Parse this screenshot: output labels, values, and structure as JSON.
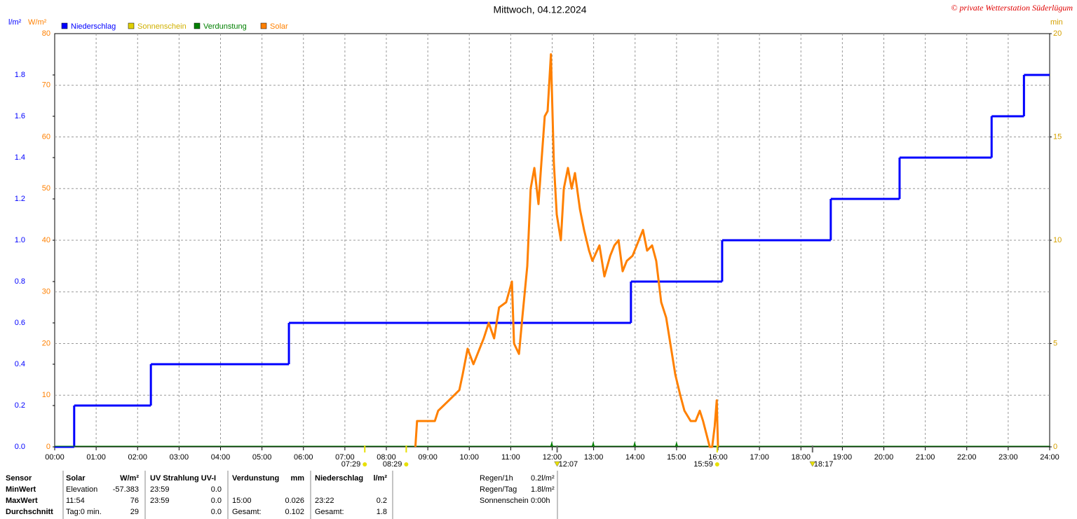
{
  "chart_data": {
    "type": "line",
    "title": "Mittwoch, 04.12.2024",
    "credit": "© private Wetterstation Süderlügum",
    "y_unit": "l/m²",
    "y2_unit": "W/m²",
    "y3_unit": "min",
    "xlim": [
      0,
      24
    ],
    "xticks": [
      {
        "value": 0,
        "label": "00:00"
      },
      {
        "value": 1,
        "label": "01:00"
      },
      {
        "value": 2,
        "label": "02:00"
      },
      {
        "value": 3,
        "label": "03:00"
      },
      {
        "value": 4,
        "label": "04:00"
      },
      {
        "value": 5,
        "label": "05:00"
      },
      {
        "value": 6,
        "label": "06:00"
      },
      {
        "value": 7,
        "label": "07:00"
      },
      {
        "value": 8,
        "label": "08:00"
      },
      {
        "value": 9,
        "label": "09:00"
      },
      {
        "value": 10,
        "label": "10:00"
      },
      {
        "value": 11,
        "label": "11:00"
      },
      {
        "value": 12,
        "label": "12:00"
      },
      {
        "value": 13,
        "label": "13:00"
      },
      {
        "value": 14,
        "label": "14:00"
      },
      {
        "value": 15,
        "label": "15:00"
      },
      {
        "value": 16,
        "label": "16:00"
      },
      {
        "value": 17,
        "label": "17:00"
      },
      {
        "value": 18,
        "label": "18:00"
      },
      {
        "value": 19,
        "label": "19:00"
      },
      {
        "value": 20,
        "label": "20:00"
      },
      {
        "value": 21,
        "label": "21:00"
      },
      {
        "value": 22,
        "label": "22:00"
      },
      {
        "value": 23,
        "label": "23:00"
      },
      {
        "value": 24,
        "label": "24:00"
      }
    ],
    "ylim": [
      0,
      2
    ],
    "yticks": [
      {
        "value": 0,
        "label": "0.0"
      },
      0.2,
      0.4,
      0.6,
      0.8,
      {
        "value": 1,
        "label": "1.0"
      },
      1.2,
      1.4,
      1.6,
      1.8
    ],
    "y2lim": [
      0,
      80
    ],
    "y2ticks": [
      0,
      10,
      20,
      30,
      40,
      50,
      60,
      70,
      80
    ],
    "y3lim": [
      0,
      20
    ],
    "y3ticks": [
      0,
      5,
      10,
      15,
      20
    ],
    "grid": true,
    "series": [
      {
        "name": "Niederschlag",
        "color": "#0000ff",
        "step": true,
        "x": [
          0,
          0.47,
          2.32,
          5.65,
          13.9,
          16.1,
          18.72,
          20.38,
          22.6,
          23.38
        ],
        "values": [
          0,
          0.2,
          0.4,
          0.6,
          0.8,
          1.0,
          1.2,
          1.4,
          1.6,
          1.8
        ]
      },
      {
        "name": "Sonnenschein",
        "color": "#e0d000"
      },
      {
        "name": "Verdunstung",
        "color": "#008000",
        "marker_x": [
          11.99,
          12.99,
          13.99,
          15.0
        ]
      },
      {
        "name": "Solar",
        "color": "#ff8000",
        "axis": "y2",
        "x": [
          8.7,
          8.74,
          9.17,
          9.25,
          9.51,
          9.76,
          9.84,
          9.96,
          10.1,
          10.35,
          10.47,
          10.6,
          10.72,
          10.89,
          11.03,
          11.08,
          11.2,
          11.28,
          11.4,
          11.48,
          11.57,
          11.67,
          11.74,
          11.82,
          11.89,
          11.97,
          12.04,
          12.11,
          12.21,
          12.28,
          12.38,
          12.47,
          12.55,
          12.67,
          12.77,
          12.89,
          12.97,
          13.14,
          13.26,
          13.4,
          13.5,
          13.6,
          13.7,
          13.8,
          13.94,
          14.09,
          14.19,
          14.29,
          14.41,
          14.51,
          14.63,
          14.75,
          14.87,
          14.97,
          15.09,
          15.19,
          15.34,
          15.46,
          15.56,
          15.64,
          15.8,
          15.86,
          15.92,
          15.97,
          16.0
        ],
        "values": [
          0,
          5,
          5,
          7,
          9,
          11,
          14,
          19,
          16,
          21,
          24,
          21,
          27,
          28,
          32,
          20,
          18,
          25,
          35,
          50,
          54,
          47,
          55,
          64,
          65,
          76,
          55,
          45,
          40,
          50,
          54,
          50,
          53,
          46,
          42,
          38,
          36,
          39,
          33,
          37,
          39,
          40,
          34,
          36,
          37,
          40,
          42,
          38,
          39,
          36,
          28,
          25,
          19,
          14,
          10,
          7,
          5,
          5,
          7,
          5,
          0,
          0,
          4,
          9,
          0
        ]
      }
    ],
    "time_markers": [
      {
        "x": 7.48,
        "label": "07:29",
        "symbol": "dot",
        "color": "#e8e000"
      },
      {
        "x": 8.48,
        "label": "08:29",
        "symbol": "dot",
        "color": "#e8e000"
      },
      {
        "x": 12.12,
        "label": "12:07",
        "symbol": "triangle",
        "color": "#e8e000"
      },
      {
        "x": 15.98,
        "label": "15:59",
        "symbol": "dot",
        "color": "#e8e000"
      },
      {
        "x": 18.28,
        "label": "18:17",
        "symbol": "triangle",
        "color": "#e8e000"
      }
    ]
  },
  "table": {
    "header": [
      "Sensor",
      "Solar",
      "W/m²",
      "UV Strahlung UV-I",
      null,
      "Verdunstung",
      "mm",
      "Niederschlag",
      "l/m²"
    ],
    "rows": [
      [
        "MinWert",
        "Elevation",
        "-57.383",
        "23:59",
        "0.0",
        null,
        null,
        null,
        null
      ],
      [
        "MaxWert",
        "11:54",
        "76",
        "23:59",
        "0.0",
        "15:00",
        "0.026",
        "23:22",
        "0.2"
      ],
      [
        "Durchschnitt",
        "Tag:0 min.",
        "29",
        null,
        "0.0",
        "Gesamt:",
        "0.102",
        "Gesamt:",
        "1.8"
      ]
    ]
  },
  "info": [
    [
      "Regen/1h",
      "0.2l/m²"
    ],
    [
      "Regen/Tag",
      "1.8l/m²"
    ],
    [
      "Sonnenschein",
      "0:00h"
    ]
  ]
}
